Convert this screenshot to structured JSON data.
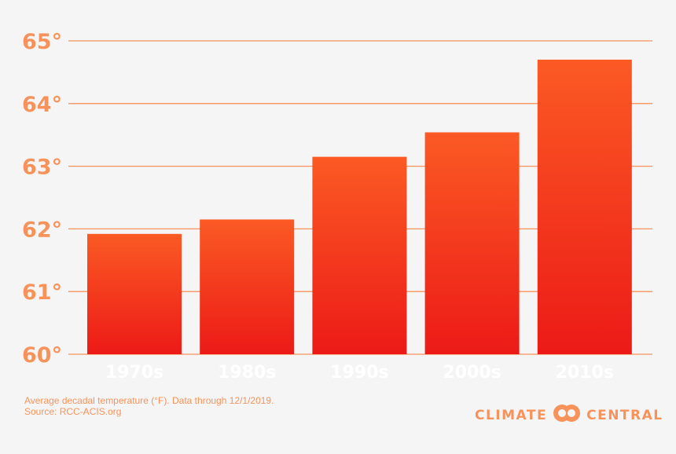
{
  "chart_data": {
    "type": "bar",
    "categories": [
      "1970s",
      "1980s",
      "1990s",
      "2000s",
      "2010s"
    ],
    "values": [
      61.92,
      62.15,
      63.15,
      63.54,
      64.7
    ],
    "title": "",
    "xlabel": "",
    "ylabel": "",
    "ylim": [
      60,
      65
    ],
    "yticks": [
      60,
      61,
      62,
      63,
      64,
      65
    ],
    "ytick_labels": [
      "60°",
      "61°",
      "62°",
      "63°",
      "64°",
      "65°"
    ],
    "grid": true,
    "bar_color_top": "#fb5a24",
    "bar_color_bottom": "#ec1a17",
    "grid_color": "#f7935a"
  },
  "footnote": {
    "line1": "Average decadal temperature (°F). Data through 12/1/2019.",
    "line2": "Source: RCC-ACIS.org"
  },
  "brand": {
    "left": "CLIMATE",
    "right": "CENTRAL",
    "logo_icon": "linked-rings-icon"
  }
}
